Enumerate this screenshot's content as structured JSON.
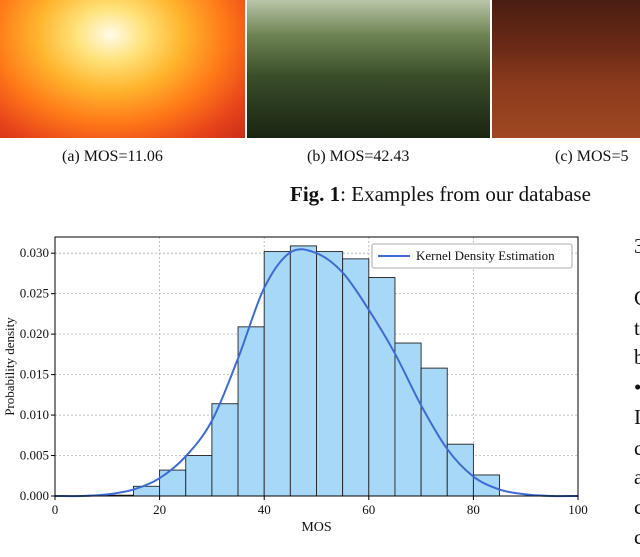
{
  "figure1": {
    "captions": [
      "(a) MOS=11.06",
      "(b) MOS=42.43",
      "(c) MOS=5"
    ],
    "label": "Fig. 1",
    "text": ": Examples from our database"
  },
  "chart_data": {
    "type": "bar",
    "xlabel": "MOS",
    "ylabel": "Probability density",
    "xlim": [
      0,
      100
    ],
    "ylim": [
      0,
      0.032
    ],
    "xticks": [
      "0",
      "20",
      "40",
      "60",
      "80",
      "100"
    ],
    "yticks": [
      "0.000",
      "0.005",
      "0.010",
      "0.015",
      "0.020",
      "0.025",
      "0.030"
    ],
    "grid": true,
    "legend": {
      "position": "top-right",
      "entries": [
        "Kernel Density Estimation"
      ]
    },
    "colors": {
      "bar": "#a8d8f8",
      "edge": "#222222",
      "kde": "#3c6bd6"
    },
    "histogram": {
      "bin_edges": [
        10,
        15,
        20,
        25,
        30,
        35,
        40,
        45,
        50,
        55,
        60,
        65,
        70,
        75,
        80,
        85
      ],
      "values": [
        0.0001,
        0.0012,
        0.0032,
        0.005,
        0.0114,
        0.0209,
        0.0302,
        0.0309,
        0.0302,
        0.0293,
        0.027,
        0.0189,
        0.0158,
        0.0064,
        0.0026,
        0.0004
      ]
    },
    "series": [
      {
        "name": "Kernel Density Estimation",
        "x": [
          0,
          5,
          10,
          15,
          20,
          25,
          30,
          35,
          40,
          45,
          50,
          55,
          60,
          65,
          70,
          75,
          80,
          85,
          90,
          95,
          100
        ],
        "y": [
          0.0,
          0.0,
          0.0002,
          0.0008,
          0.0022,
          0.0049,
          0.0093,
          0.017,
          0.0257,
          0.0301,
          0.03,
          0.0276,
          0.023,
          0.0176,
          0.0112,
          0.0058,
          0.0024,
          0.0008,
          0.0002,
          0.0,
          0.0
        ]
      }
    ]
  },
  "right_column": [
    "3",
    "C",
    "t",
    "b",
    "•",
    "I",
    "c",
    "a",
    "c",
    "c"
  ]
}
